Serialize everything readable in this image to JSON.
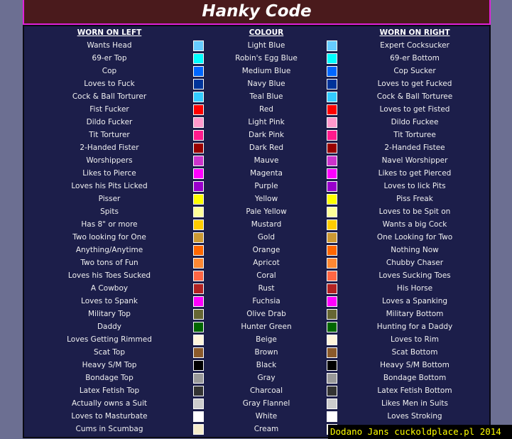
{
  "title": "Hanky Code",
  "headers": {
    "left": "WORN ON LEFT",
    "colour": "COLOUR",
    "right": "WORN ON RIGHT"
  },
  "rows": [
    {
      "left": "Wants Head",
      "colour": "Light Blue",
      "right": "Expert Cocksucker",
      "hex": "#66ccff"
    },
    {
      "left": "69-er Top",
      "colour": "Robin's Egg Blue",
      "right": "69-er Bottom",
      "hex": "#00ffff"
    },
    {
      "left": "Cop",
      "colour": "Medium Blue",
      "right": "Cop Sucker",
      "hex": "#0066ff"
    },
    {
      "left": "Loves to Fuck",
      "colour": "Navy Blue",
      "right": "Loves to get Fucked",
      "hex": "#003399"
    },
    {
      "left": "Cock & Ball Torturer",
      "colour": "Teal Blue",
      "right": "Cock & Ball Torturee",
      "hex": "#33ccff"
    },
    {
      "left": "Fist Fucker",
      "colour": "Red",
      "right": "Loves to get Fisted",
      "hex": "#ff0000"
    },
    {
      "left": "Dildo Fucker",
      "colour": "Light Pink",
      "right": "Dildo Fuckee",
      "hex": "#ff99cc"
    },
    {
      "left": "Tit Torturer",
      "colour": "Dark Pink",
      "right": "Tit Torturee",
      "hex": "#ff1a8c"
    },
    {
      "left": "2-Handed Fister",
      "colour": "Dark Red",
      "right": "2-Handed Fistee",
      "hex": "#990000"
    },
    {
      "left": "Worshippers",
      "colour": "Mauve",
      "right": "Navel Worshipper",
      "hex": "#cc33cc"
    },
    {
      "left": "Likes to Pierce",
      "colour": "Magenta",
      "right": "Likes to get Pierced",
      "hex": "#ff00ff"
    },
    {
      "left": "Loves his Pits Licked",
      "colour": "Purple",
      "right": "Loves to lick Pits",
      "hex": "#9900cc"
    },
    {
      "left": "Pisser",
      "colour": "Yellow",
      "right": "Piss Freak",
      "hex": "#ffff00"
    },
    {
      "left": "Spits",
      "colour": "Pale Yellow",
      "right": "Loves to be Spit on",
      "hex": "#ffff99"
    },
    {
      "left": "Has 8\" or more",
      "colour": "Mustard",
      "right": "Wants a big Cock",
      "hex": "#ffcc00"
    },
    {
      "left": "Two looking for One",
      "colour": "Gold",
      "right": "One Looking for Two",
      "hex": "#cc9933"
    },
    {
      "left": "Anything/Anytime",
      "colour": "Orange",
      "right": "Nothing Now",
      "hex": "#ff6600"
    },
    {
      "left": "Two tons of Fun",
      "colour": "Apricot",
      "right": "Chubby Chaser",
      "hex": "#ff8833"
    },
    {
      "left": "Loves his Toes Sucked",
      "colour": "Coral",
      "right": "Loves Sucking Toes",
      "hex": "#ff6644"
    },
    {
      "left": "A Cowboy",
      "colour": "Rust",
      "right": "His Horse",
      "hex": "#b22222"
    },
    {
      "left": "Loves to Spank",
      "colour": "Fuchsia",
      "right": "Loves a Spanking",
      "hex": "#ff00ff"
    },
    {
      "left": "Military Top",
      "colour": "Olive Drab",
      "right": "Military Bottom",
      "hex": "#666633"
    },
    {
      "left": "Daddy",
      "colour": "Hunter Green",
      "right": "Hunting for a Daddy",
      "hex": "#006600"
    },
    {
      "left": "Loves Getting Rimmed",
      "colour": "Beige",
      "right": "Loves to Rim",
      "hex": "#fff5dc"
    },
    {
      "left": "Scat Top",
      "colour": "Brown",
      "right": "Scat Bottom",
      "hex": "#8b5a2b"
    },
    {
      "left": "Heavy S/M Top",
      "colour": "Black",
      "right": "Heavy S/M Bottom",
      "hex": "#000000"
    },
    {
      "left": "Bondage Top",
      "colour": "Gray",
      "right": "Bondage Bottom",
      "hex": "#999999"
    },
    {
      "left": "Latex Fetish Top",
      "colour": "Charcoal",
      "right": "Latex Fetish Bottom",
      "hex": "#333333"
    },
    {
      "left": "Actually owns a Suit",
      "colour": "Gray Flannel",
      "right": "Likes Men in Suits",
      "hex": "#cccccc"
    },
    {
      "left": "Loves to Masturbate",
      "colour": "White",
      "right": "Loves Stroking",
      "hex": "#ffffff"
    },
    {
      "left": "Cums in Scumbag",
      "colour": "Cream",
      "right": "",
      "hex": "#f5eccc"
    }
  ],
  "watermark": "Dodano Jans cuckoldplace.pl 2014"
}
